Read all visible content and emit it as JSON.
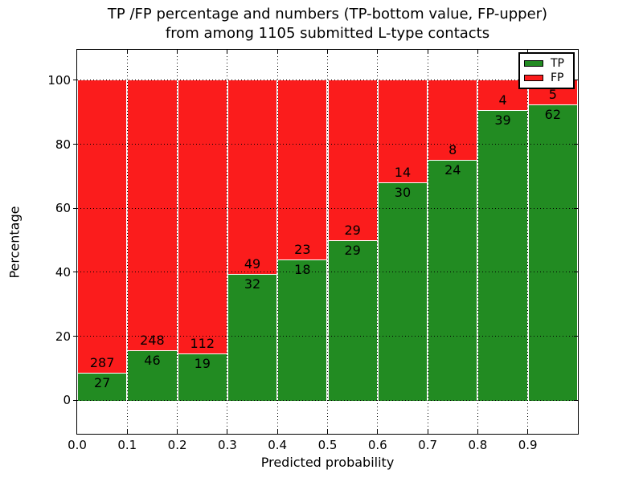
{
  "chart_data": {
    "type": "bar",
    "stacked": true,
    "title": "TP /FP percentage and numbers (TP-bottom value, FP-upper) from among 1105 submitted L-type contacts",
    "title_line1": "TP /FP percentage and numbers (TP-bottom value, FP-upper)",
    "title_line2": "from among 1105 submitted L-type contacts",
    "xlabel": "Predicted probability",
    "ylabel": "Percentage",
    "total_contacts": 1105,
    "xlim": [
      0.0,
      1.0
    ],
    "ylim": [
      -10.5,
      109.5
    ],
    "x_tick_labels": [
      "0.0",
      "0.1",
      "0.2",
      "0.3",
      "0.4",
      "0.5",
      "0.6",
      "0.7",
      "0.8",
      "0.9"
    ],
    "y_tick_labels": [
      "0",
      "20",
      "40",
      "60",
      "80",
      "100"
    ],
    "y_tick_values": [
      0,
      20,
      40,
      60,
      80,
      100
    ],
    "grid": true,
    "grid_style": "dotted",
    "legend_position": "upper right",
    "legend": [
      {
        "label": "TP",
        "color": "#228b22"
      },
      {
        "label": "FP",
        "color": "#fb1c1c"
      }
    ],
    "colors": {
      "tp": "#228b22",
      "fp": "#fb1c1c",
      "bar_edge": "#ffffff",
      "frame": "#000000"
    },
    "bins": [
      {
        "range": "0.0-0.1",
        "tp": 27,
        "fp": 287,
        "tp_pct": 8.6,
        "fp_pct": 91.4
      },
      {
        "range": "0.1-0.2",
        "tp": 46,
        "fp": 248,
        "tp_pct": 15.65,
        "fp_pct": 84.35
      },
      {
        "range": "0.2-0.3",
        "tp": 19,
        "fp": 112,
        "tp_pct": 14.5,
        "fp_pct": 85.5
      },
      {
        "range": "0.3-0.4",
        "tp": 32,
        "fp": 49,
        "tp_pct": 39.51,
        "fp_pct": 60.49
      },
      {
        "range": "0.4-0.5",
        "tp": 18,
        "fp": 23,
        "tp_pct": 43.9,
        "fp_pct": 56.1
      },
      {
        "range": "0.5-0.6",
        "tp": 29,
        "fp": 29,
        "tp_pct": 50.0,
        "fp_pct": 50.0
      },
      {
        "range": "0.6-0.7",
        "tp": 30,
        "fp": 14,
        "tp_pct": 68.18,
        "fp_pct": 31.82
      },
      {
        "range": "0.7-0.8",
        "tp": 24,
        "fp": 8,
        "tp_pct": 75.0,
        "fp_pct": 25.0
      },
      {
        "range": "0.8-0.9",
        "tp": 39,
        "fp": 4,
        "tp_pct": 90.7,
        "fp_pct": 9.3
      },
      {
        "range": "0.9-1.0",
        "tp": 62,
        "fp": 5,
        "tp_pct": 92.54,
        "fp_pct": 7.46
      }
    ]
  }
}
